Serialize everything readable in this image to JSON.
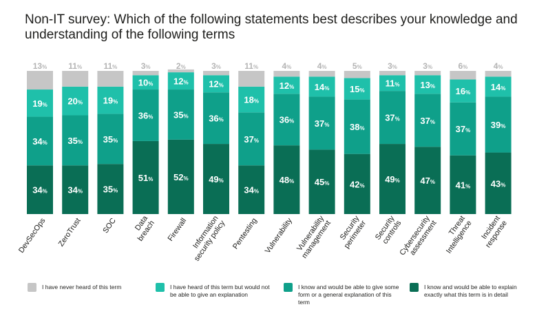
{
  "title": "Non-IT survey: Which of the following statements best describes your knowledge and understanding of the following terms",
  "colors": {
    "never_heard": "#c6c6c6",
    "heard_no_explain": "#1fc0aa",
    "general_explain": "#0fa08a",
    "explain_detail": "#0a6e55"
  },
  "legend": [
    {
      "key": "never_heard",
      "label": "I have never heard of this term"
    },
    {
      "key": "heard_no_explain",
      "label": "I have heard of this term but would not be able to give an explanation"
    },
    {
      "key": "general_explain",
      "label": "I know and would be able to give some form or a general explanation of this term"
    },
    {
      "key": "explain_detail",
      "label": "I know and would be able to explain exactly what this term is in detail"
    }
  ],
  "chart_data": {
    "type": "bar",
    "stacked": true,
    "unit": "%",
    "categories": [
      "DevSecOps",
      "ZeroTrust",
      "SOC",
      "Data breach",
      "Firewall",
      "Information security policy",
      "Pentesting",
      "Vulnerability",
      "Vulnerability management",
      "Security perimeter",
      "Security controls",
      "Cybersecurity assessment",
      "Threat Intelligence",
      "Incident response"
    ],
    "category_lines": [
      [
        "DevSecOps"
      ],
      [
        "ZeroTrust"
      ],
      [
        "SOC"
      ],
      [
        "Data",
        "breach"
      ],
      [
        "Firewall"
      ],
      [
        "Information",
        "security policy"
      ],
      [
        "Pentesting"
      ],
      [
        "Vulnerability"
      ],
      [
        "Vulnerability",
        "management"
      ],
      [
        "Security",
        "perimeter"
      ],
      [
        "Security",
        "controls"
      ],
      [
        "Cybersecurity",
        "assessment"
      ],
      [
        "Threat",
        "Intelligence"
      ],
      [
        "Incident",
        "response"
      ]
    ],
    "series": [
      {
        "name": "I know and would be able to explain exactly what this term is in detail",
        "key": "explain_detail",
        "values": [
          34,
          34,
          35,
          51,
          52,
          49,
          34,
          48,
          45,
          42,
          49,
          47,
          41,
          43
        ]
      },
      {
        "name": "I know and would be able to give some form or a general explanation of this term",
        "key": "general_explain",
        "values": [
          34,
          35,
          35,
          36,
          35,
          36,
          37,
          36,
          37,
          38,
          37,
          37,
          37,
          39
        ]
      },
      {
        "name": "I have heard of this term but would not be able to give an explanation",
        "key": "heard_no_explain",
        "values": [
          19,
          20,
          19,
          10,
          12,
          12,
          18,
          12,
          14,
          15,
          11,
          13,
          16,
          14
        ]
      },
      {
        "name": "I have never heard of this term",
        "key": "never_heard",
        "values": [
          13,
          11,
          11,
          3,
          2,
          3,
          11,
          4,
          4,
          5,
          3,
          3,
          6,
          4
        ]
      }
    ],
    "ylim": [
      0,
      100
    ]
  }
}
